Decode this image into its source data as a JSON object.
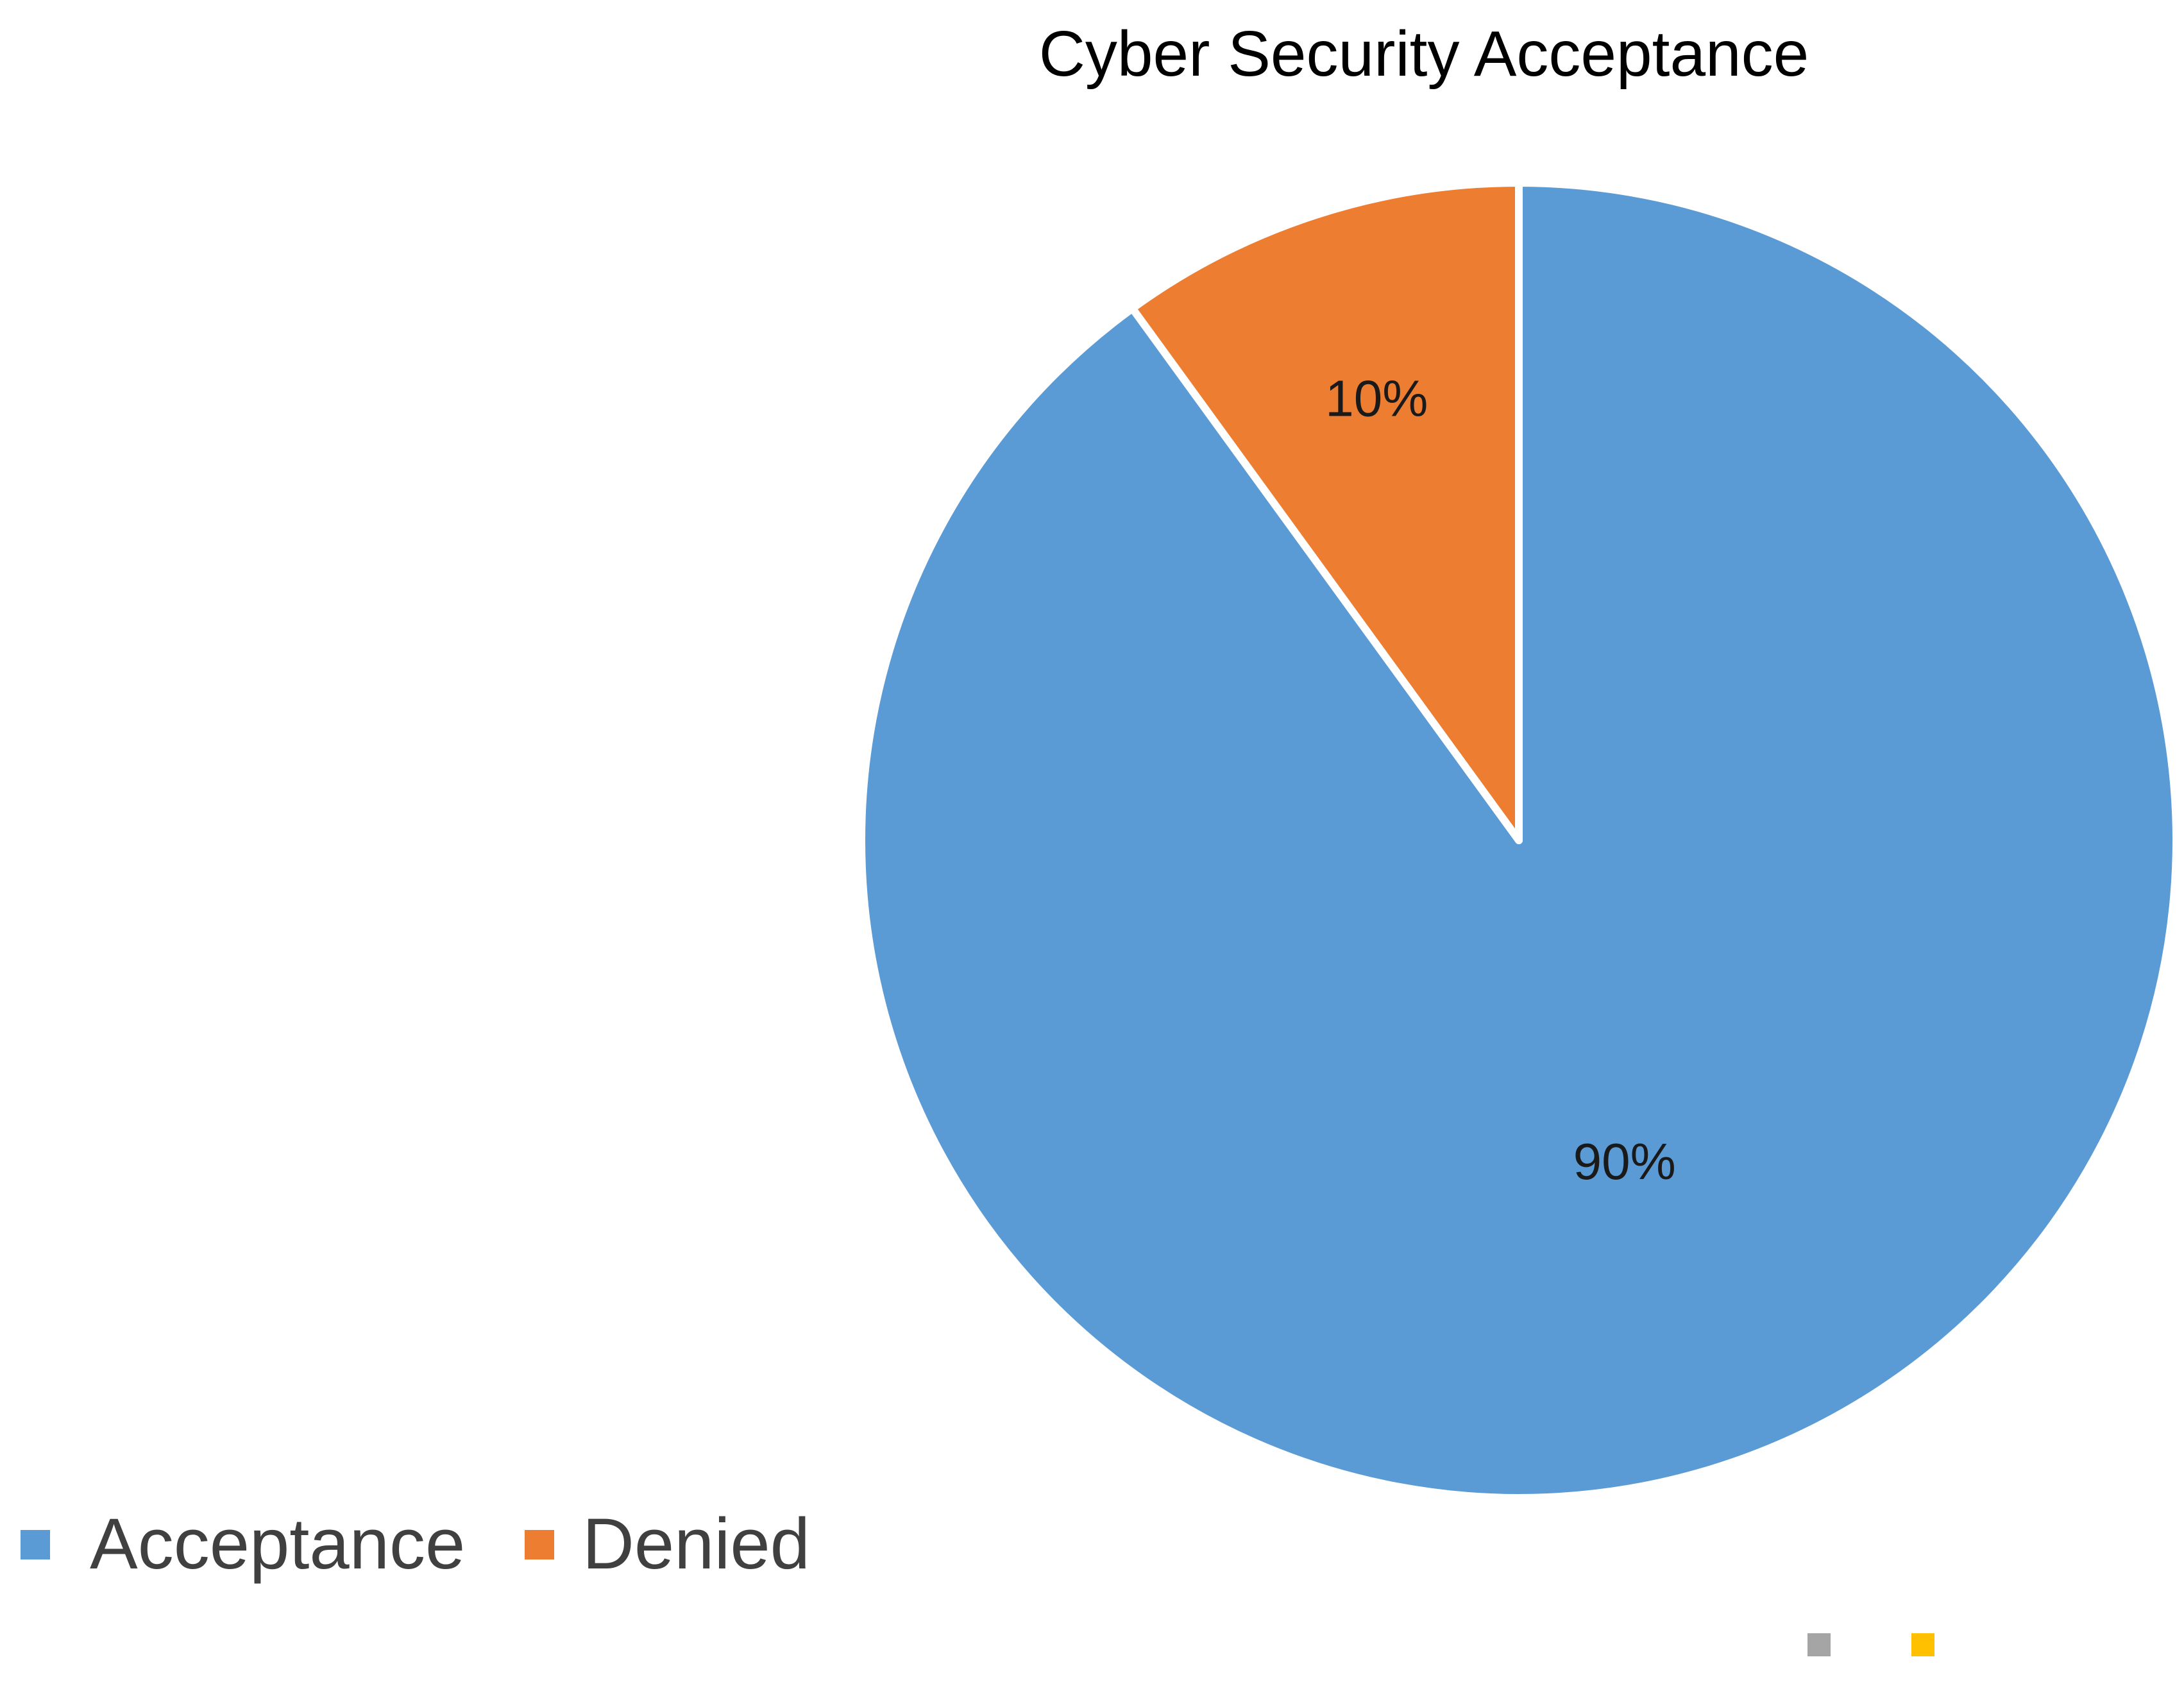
{
  "chart_data": {
    "type": "pie",
    "title": "Cyber Security Acceptance",
    "categories": [
      "Acceptance",
      "Denied"
    ],
    "values": [
      90,
      10
    ],
    "value_labels": [
      "90%",
      "10%"
    ],
    "colors": [
      "#5B9BD5",
      "#ED7D31"
    ],
    "start_angle_deg": 0,
    "direction": "clockwise",
    "legend": {
      "position": "bottom-left",
      "entries": [
        "Acceptance",
        "Denied"
      ]
    },
    "extra_legend_markers": [
      "#A5A5A5",
      "#FFC000"
    ]
  }
}
